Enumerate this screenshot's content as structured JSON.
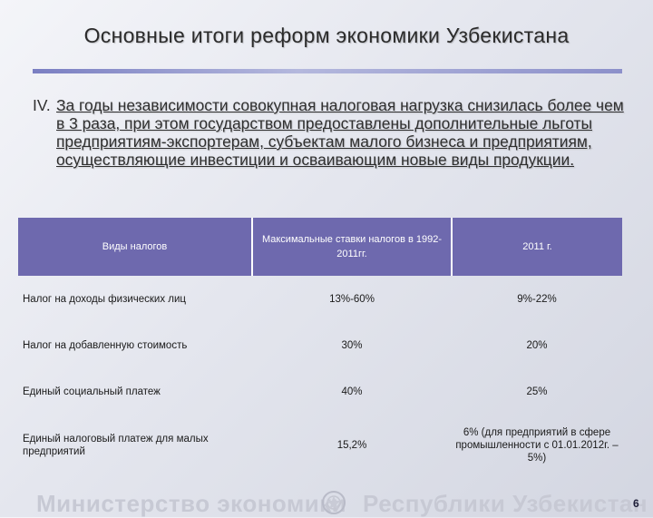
{
  "slide": {
    "title": "Основные итоги реформ экономики Узбекистана",
    "intro_roman": "IV.",
    "intro_text": "За годы независимости совокупная налоговая нагрузка снизилась более чем в 3 раза, при этом государством предоставлены дополнительные льготы предприятиям-экспортерам, субъектам малого бизнеса и предприятиям, осуществляющие инвестиции и осваивающим новые виды продукции.",
    "page_number": "6"
  },
  "table": {
    "headers": [
      "Виды налогов",
      "Максимальные ставки налогов в 1992-2011гг.",
      "2011 г."
    ],
    "rows": [
      [
        "Налог на доходы физических лиц",
        "13%-60%",
        "9%-22%"
      ],
      [
        "Налог на добавленную стоимость",
        "30%",
        "20%"
      ],
      [
        "Единый социальный платеж",
        "40%",
        "25%"
      ],
      [
        "Единый налоговый платеж для малых предприятий",
        "15,2%",
        "6% (для предприятий в сфере промышленности с 01.01.2012г. – 5%)"
      ]
    ]
  },
  "footer": {
    "left": "Министерство экономики",
    "right": "Республики Узбекистан",
    "emblem_icon": "uzbekistan-emblem-icon"
  },
  "colors": {
    "header_bg": "#6e69ae",
    "rule": "#7a7fc2"
  }
}
